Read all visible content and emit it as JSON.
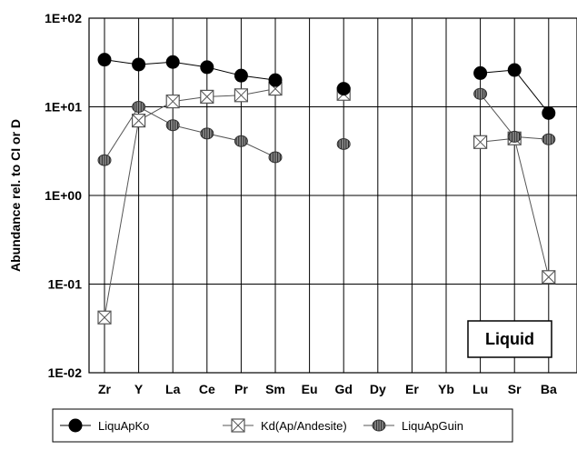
{
  "chart_data": {
    "type": "line",
    "ylabel": "Abundance rel. to CI or D",
    "yscale": "log",
    "ylim": [
      0.01,
      100
    ],
    "yticks": [
      "1E-02",
      "1E-01",
      "1E+00",
      "1E+01",
      "1E+02"
    ],
    "categories": [
      "Zr",
      "Y",
      "La",
      "Ce",
      "Pr",
      "Sm",
      "Eu",
      "Gd",
      "Dy",
      "Er",
      "Yb",
      "Lu",
      "Sr",
      "Ba"
    ],
    "grid": true,
    "legend_position": "bottom",
    "annotation": "Liquid",
    "series": [
      {
        "name": "LiquApKo",
        "marker": "filled-circle",
        "color": "#000000",
        "values": [
          34,
          30,
          32,
          28,
          22.5,
          20,
          null,
          16,
          null,
          null,
          null,
          24,
          26,
          8.5
        ]
      },
      {
        "name": "Kd(Ap/Andesite)",
        "marker": "boxed-x",
        "color": "#555555",
        "values": [
          0.042,
          7,
          11.5,
          13,
          13.5,
          16,
          null,
          14,
          null,
          null,
          null,
          4,
          4.4,
          0.12
        ]
      },
      {
        "name": "LiquApGuin",
        "marker": "hatched-circle",
        "color": "#555555",
        "values": [
          2.5,
          10,
          6.2,
          5,
          4.1,
          2.7,
          null,
          3.8,
          null,
          null,
          null,
          14,
          4.6,
          4.3
        ]
      }
    ]
  }
}
